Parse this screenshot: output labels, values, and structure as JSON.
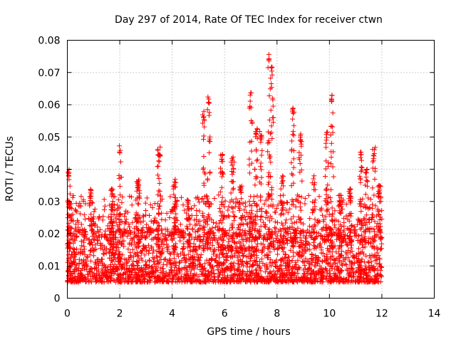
{
  "chart_data": {
    "type": "scatter",
    "title": "Day 297 of 2014, Rate Of TEC Index for receiver ctwn",
    "xlabel": "GPS time / hours",
    "ylabel": "ROTI / TECUs",
    "xlim": [
      0,
      14
    ],
    "ylim": [
      0,
      0.08
    ],
    "xticks": [
      0,
      2,
      4,
      6,
      8,
      10,
      12,
      14
    ],
    "yticks": [
      0,
      0.01,
      0.02,
      0.03,
      0.04,
      0.05,
      0.06,
      0.07,
      0.08
    ],
    "xtick_labels": [
      "0",
      "2",
      "4",
      "6",
      "8",
      "10",
      "12",
      "14"
    ],
    "ytick_labels": [
      "0",
      "0.01",
      "0.02",
      "0.03",
      "0.04",
      "0.05",
      "0.06",
      "0.07",
      "0.08"
    ],
    "grid": true,
    "marker": "+",
    "color": "#ff0000",
    "series": [
      {
        "name": "ROTI",
        "description": "Dense ROTI samples from 0 to 12 h; baseline 0.005–0.02 TECU/min with spikes",
        "peaks": [
          {
            "x": 0.05,
            "y": 0.04
          },
          {
            "x": 0.1,
            "y": 0.03
          },
          {
            "x": 0.9,
            "y": 0.034
          },
          {
            "x": 1.7,
            "y": 0.034
          },
          {
            "x": 2.0,
            "y": 0.048
          },
          {
            "x": 2.7,
            "y": 0.037
          },
          {
            "x": 3.5,
            "y": 0.047
          },
          {
            "x": 4.1,
            "y": 0.037
          },
          {
            "x": 4.6,
            "y": 0.031
          },
          {
            "x": 5.2,
            "y": 0.058
          },
          {
            "x": 5.4,
            "y": 0.063
          },
          {
            "x": 5.9,
            "y": 0.045
          },
          {
            "x": 6.3,
            "y": 0.044
          },
          {
            "x": 6.6,
            "y": 0.035
          },
          {
            "x": 7.0,
            "y": 0.064
          },
          {
            "x": 7.2,
            "y": 0.053
          },
          {
            "x": 7.4,
            "y": 0.052
          },
          {
            "x": 7.7,
            "y": 0.076
          },
          {
            "x": 7.8,
            "y": 0.072
          },
          {
            "x": 8.2,
            "y": 0.038
          },
          {
            "x": 8.6,
            "y": 0.059
          },
          {
            "x": 8.9,
            "y": 0.051
          },
          {
            "x": 9.4,
            "y": 0.038
          },
          {
            "x": 9.9,
            "y": 0.052
          },
          {
            "x": 10.1,
            "y": 0.063
          },
          {
            "x": 10.4,
            "y": 0.032
          },
          {
            "x": 10.8,
            "y": 0.034
          },
          {
            "x": 11.2,
            "y": 0.046
          },
          {
            "x": 11.4,
            "y": 0.04
          },
          {
            "x": 11.7,
            "y": 0.047
          },
          {
            "x": 11.9,
            "y": 0.035
          }
        ]
      }
    ]
  }
}
